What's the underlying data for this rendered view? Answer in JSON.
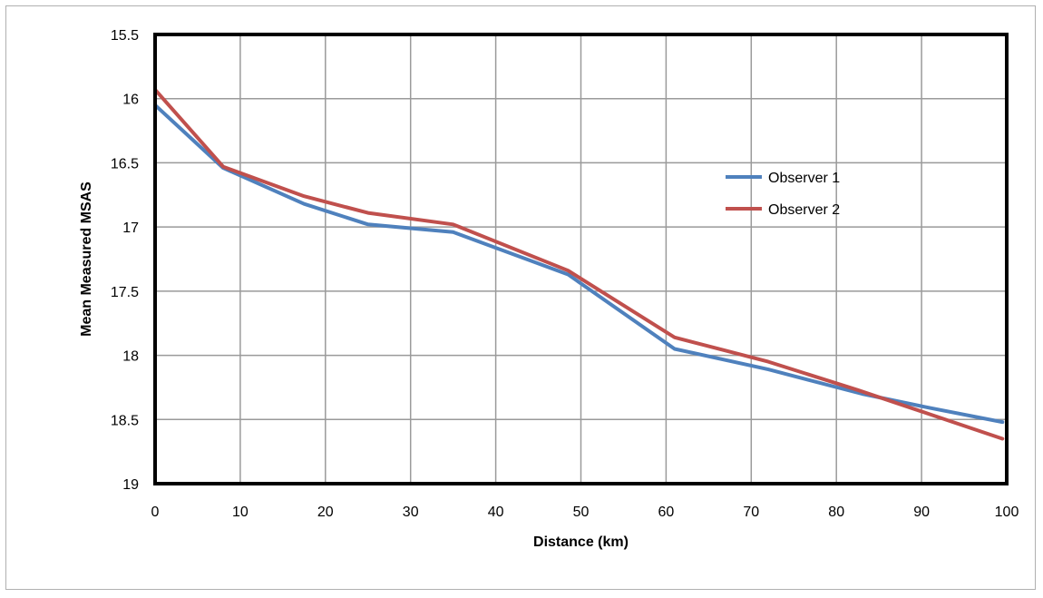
{
  "chart_data": {
    "type": "line",
    "xlabel": "Distance (km)",
    "ylabel": "Mean Measured MSAS",
    "xlim": [
      0,
      100
    ],
    "ylim": [
      15.5,
      19
    ],
    "y_inverted": true,
    "x_ticks": [
      0,
      10,
      20,
      30,
      40,
      50,
      60,
      70,
      80,
      90,
      100
    ],
    "y_ticks": [
      15.5,
      16,
      16.5,
      17,
      17.5,
      18,
      18.5,
      19
    ],
    "grid": true,
    "legend_position": "right",
    "series": [
      {
        "name": "Observer 1",
        "color": "#4f81bd",
        "points": [
          [
            0,
            16.05
          ],
          [
            8,
            16.54
          ],
          [
            17.5,
            16.82
          ],
          [
            25,
            16.98
          ],
          [
            35,
            17.04
          ],
          [
            48.5,
            17.37
          ],
          [
            61,
            17.95
          ],
          [
            72,
            18.11
          ],
          [
            83,
            18.3
          ],
          [
            91,
            18.41
          ],
          [
            99.5,
            18.52
          ]
        ]
      },
      {
        "name": "Observer 2",
        "color": "#c0504d",
        "points": [
          [
            0,
            15.93
          ],
          [
            8,
            16.53
          ],
          [
            17.5,
            16.76
          ],
          [
            25,
            16.89
          ],
          [
            35,
            16.98
          ],
          [
            48.5,
            17.34
          ],
          [
            61,
            17.86
          ],
          [
            72,
            18.05
          ],
          [
            82.5,
            18.27
          ],
          [
            91,
            18.46
          ],
          [
            99.5,
            18.65
          ]
        ]
      }
    ]
  }
}
